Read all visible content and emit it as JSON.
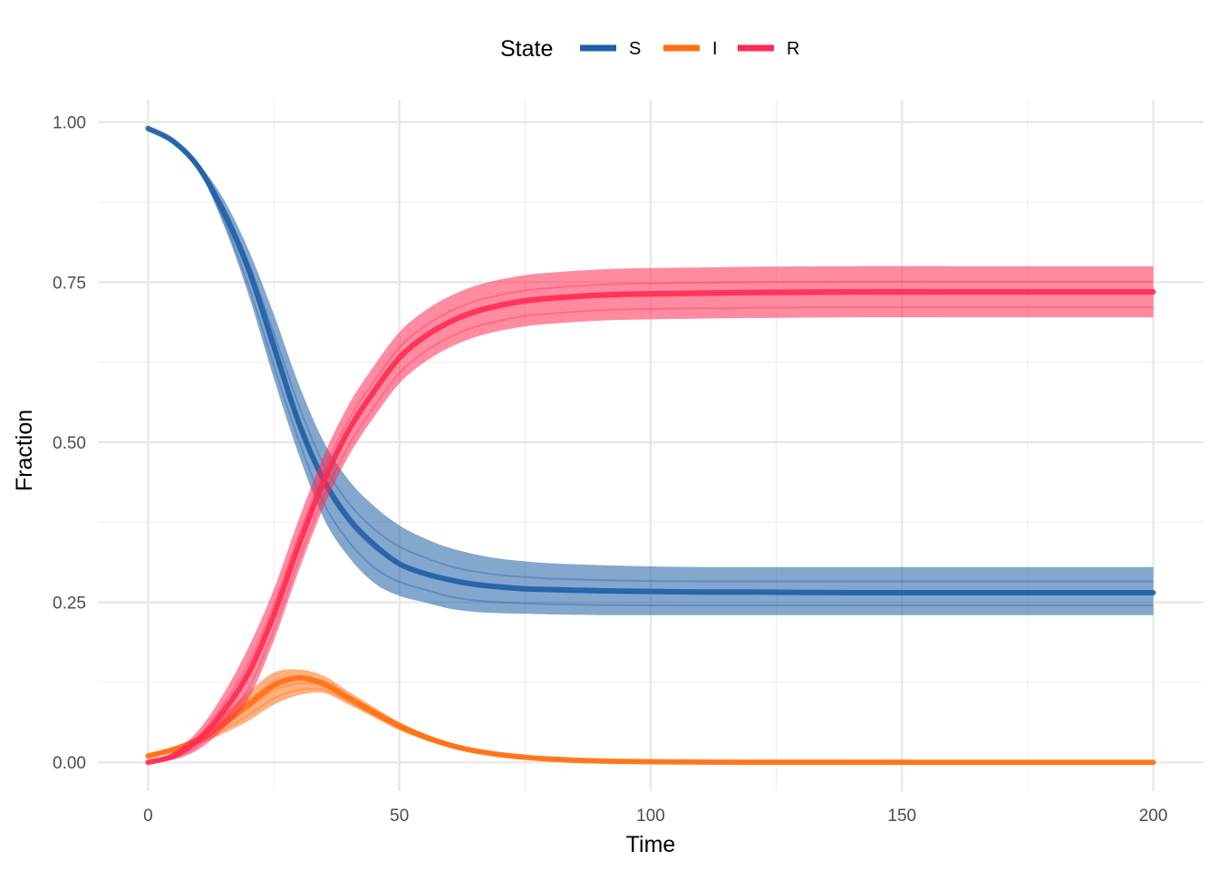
{
  "chart_data": {
    "type": "line",
    "title": "",
    "xlabel": "Time",
    "ylabel": "Fraction",
    "xlim": [
      -10,
      210
    ],
    "ylim": [
      -0.045,
      1.035
    ],
    "x_ticks": [
      0,
      50,
      100,
      150,
      200
    ],
    "x_tick_labels": [
      "0",
      "50",
      "100",
      "150",
      "200"
    ],
    "y_ticks": [
      0,
      0.25,
      0.5,
      0.75,
      1
    ],
    "y_tick_labels": [
      "0.00",
      "0.25",
      "0.50",
      "0.75",
      "1.00"
    ],
    "grid": true,
    "legend": {
      "title": "State",
      "position": "top"
    },
    "x": [
      0,
      5,
      10,
      15,
      20,
      25,
      30,
      35,
      40,
      45,
      50,
      55,
      60,
      65,
      70,
      75,
      80,
      90,
      100,
      110,
      120,
      140,
      160,
      180,
      200
    ],
    "series": [
      {
        "name": "S",
        "color": "#1f5fa6",
        "values": [
          0.99,
          0.97,
          0.93,
          0.86,
          0.77,
          0.65,
          0.53,
          0.44,
          0.38,
          0.34,
          0.31,
          0.295,
          0.285,
          0.278,
          0.274,
          0.271,
          0.27,
          0.268,
          0.267,
          0.266,
          0.266,
          0.265,
          0.265,
          0.265,
          0.265
        ],
        "band": [
          [
            0.99,
            0.99
          ],
          [
            0.967,
            0.972
          ],
          [
            0.925,
            0.935
          ],
          [
            0.84,
            0.88
          ],
          [
            0.73,
            0.8
          ],
          [
            0.6,
            0.7
          ],
          [
            0.48,
            0.59
          ],
          [
            0.38,
            0.5
          ],
          [
            0.32,
            0.44
          ],
          [
            0.28,
            0.4
          ],
          [
            0.26,
            0.37
          ],
          [
            0.25,
            0.35
          ],
          [
            0.24,
            0.335
          ],
          [
            0.235,
            0.325
          ],
          [
            0.233,
            0.318
          ],
          [
            0.232,
            0.314
          ],
          [
            0.231,
            0.311
          ],
          [
            0.23,
            0.308
          ],
          [
            0.23,
            0.306
          ],
          [
            0.23,
            0.305
          ],
          [
            0.23,
            0.305
          ],
          [
            0.23,
            0.305
          ],
          [
            0.23,
            0.305
          ],
          [
            0.23,
            0.305
          ],
          [
            0.23,
            0.305
          ]
        ]
      },
      {
        "name": "I",
        "color": "#ff7013",
        "values": [
          0.01,
          0.02,
          0.035,
          0.06,
          0.09,
          0.12,
          0.132,
          0.122,
          0.1,
          0.078,
          0.057,
          0.04,
          0.027,
          0.018,
          0.012,
          0.008,
          0.005,
          0.002,
          0.001,
          0.0005,
          0.0002,
          0.0001,
          0,
          0,
          0
        ],
        "band": [
          [
            0.008,
            0.012
          ],
          [
            0.016,
            0.024
          ],
          [
            0.028,
            0.042
          ],
          [
            0.045,
            0.075
          ],
          [
            0.065,
            0.11
          ],
          [
            0.09,
            0.14
          ],
          [
            0.105,
            0.145
          ],
          [
            0.108,
            0.135
          ],
          [
            0.09,
            0.11
          ],
          [
            0.07,
            0.086
          ],
          [
            0.05,
            0.063
          ],
          [
            0.035,
            0.045
          ],
          [
            0.023,
            0.031
          ],
          [
            0.015,
            0.021
          ],
          [
            0.01,
            0.014
          ],
          [
            0.006,
            0.01
          ],
          [
            0.004,
            0.006
          ],
          [
            0.0015,
            0.003
          ],
          [
            0.0007,
            0.0015
          ],
          [
            0.0003,
            0.0008
          ],
          [
            0.0001,
            0.0003
          ],
          [
            0,
            0.0001
          ],
          [
            0,
            0
          ],
          [
            0,
            0
          ],
          [
            0,
            0
          ]
        ]
      },
      {
        "name": "R",
        "color": "#ff2b53",
        "values": [
          0,
          0.01,
          0.035,
          0.08,
          0.14,
          0.23,
          0.34,
          0.44,
          0.52,
          0.58,
          0.632,
          0.665,
          0.688,
          0.704,
          0.714,
          0.721,
          0.725,
          0.73,
          0.732,
          0.733,
          0.734,
          0.735,
          0.735,
          0.735,
          0.735
        ]
      }
    ]
  }
}
